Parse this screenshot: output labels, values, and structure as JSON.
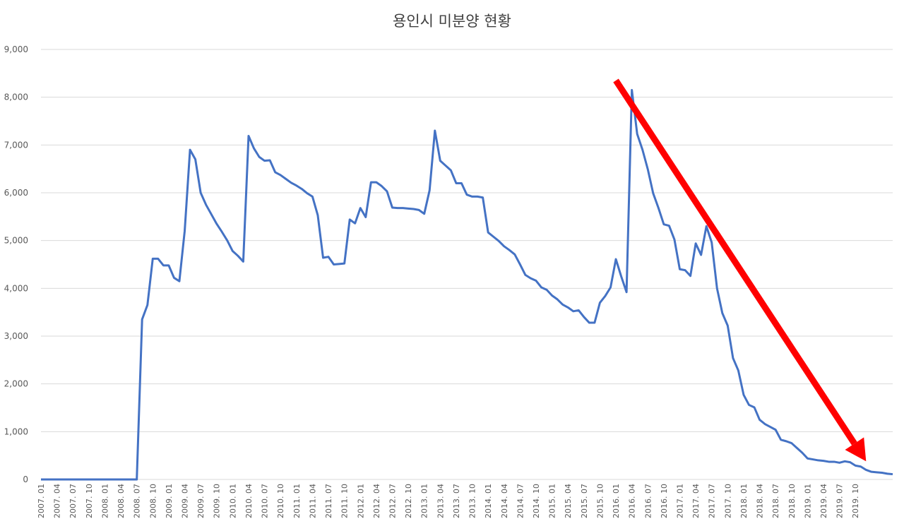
{
  "chart_data": {
    "type": "line",
    "title": "용인시 미분양 현황",
    "xlabel": "",
    "ylabel": "",
    "ylim": [
      0,
      9000
    ],
    "yticks": [
      0,
      1000,
      2000,
      3000,
      4000,
      5000,
      6000,
      7000,
      8000,
      9000
    ],
    "ytick_labels": [
      "0",
      "1,000",
      "2,000",
      "3,000",
      "4,000",
      "5,000",
      "6,000",
      "7,000",
      "8,000",
      "9,000"
    ],
    "grid": true,
    "legend": "none",
    "line_color": "#4472c4",
    "annotation": {
      "type": "arrow",
      "color": "#ff0000",
      "from": [
        "2016. 01",
        8350
      ],
      "to": [
        "2019. 12",
        380
      ]
    },
    "xtick_labels": [
      "2007. 01",
      "2007. 04",
      "2007. 07",
      "2007. 10",
      "2008. 01",
      "2008. 04",
      "2008. 07",
      "2008. 10",
      "2009. 01",
      "2009. 04",
      "2009. 07",
      "2009. 10",
      "2010. 01",
      "2010. 04",
      "2010. 07",
      "2010. 10",
      "2011. 01",
      "2011. 04",
      "2011. 07",
      "2011. 10",
      "2012. 01",
      "2012. 04",
      "2012. 07",
      "2012. 10",
      "2013. 01",
      "2013. 04",
      "2013. 07",
      "2013. 10",
      "2014. 01",
      "2014. 04",
      "2014. 07",
      "2014. 10",
      "2015. 01",
      "2015. 04",
      "2015. 07",
      "2015. 10",
      "2016. 01",
      "2016. 04",
      "2016. 07",
      "2016. 10",
      "2017. 01",
      "2017. 04",
      "2017. 07",
      "2017. 10",
      "2018. 01",
      "2018. 04",
      "2018. 07",
      "2018. 10",
      "2019. 01",
      "2019. 04",
      "2019. 07",
      "2019. 10"
    ],
    "series": [
      {
        "values": [
          0,
          0,
          0,
          0,
          0,
          0,
          0,
          0,
          0,
          0,
          0,
          0,
          0,
          0,
          0,
          0,
          0,
          0,
          0,
          3350,
          3650,
          4620,
          4620,
          4480,
          4480,
          4220,
          4150,
          5200,
          6900,
          6700,
          6000,
          5750,
          5550,
          5350,
          5180,
          5000,
          4780,
          4680,
          4560,
          7190,
          6930,
          6750,
          6670,
          6680,
          6430,
          6370,
          6290,
          6210,
          6150,
          6080,
          5990,
          5920,
          5530,
          4640,
          4660,
          4500,
          4510,
          4520,
          5440,
          5360,
          5680,
          5490,
          6220,
          6220,
          6140,
          6030,
          5690,
          5680,
          5680,
          5670,
          5660,
          5640,
          5560,
          6050,
          7300,
          6670,
          6570,
          6470,
          6200,
          6200,
          5960,
          5920,
          5920,
          5900,
          5170,
          5080,
          4990,
          4880,
          4800,
          4710,
          4500,
          4280,
          4210,
          4160,
          4020,
          3970,
          3850,
          3770,
          3660,
          3600,
          3520,
          3540,
          3400,
          3280,
          3280,
          3700,
          3840,
          4020,
          4610,
          4250,
          3920,
          8150,
          7230,
          6900,
          6490,
          5990,
          5680,
          5340,
          5310,
          5020,
          4400,
          4380,
          4260,
          4940,
          4700,
          5300,
          4960,
          4000,
          3480,
          3220,
          2540,
          2280,
          1770,
          1560,
          1510,
          1250,
          1160,
          1100,
          1040,
          830,
          800,
          760,
          660,
          560,
          440,
          420,
          400,
          390,
          370,
          370,
          350,
          380,
          360,
          290,
          270,
          200,
          160,
          150,
          140,
          120,
          110
        ]
      }
    ]
  }
}
